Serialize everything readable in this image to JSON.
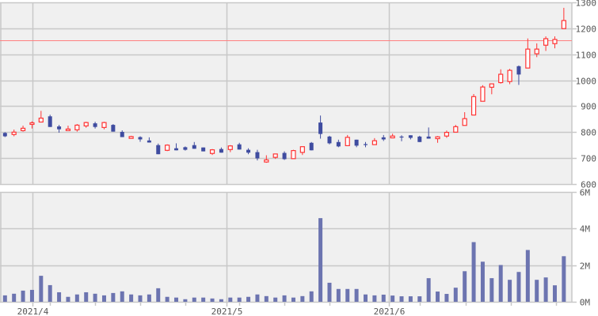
{
  "chart_data": [
    {
      "type": "candlestick",
      "price_axis": {
        "ylim": [
          600,
          1300
        ],
        "ticks": [
          "600",
          "700",
          "800",
          "900",
          "1000",
          "1100",
          "1200",
          "1300"
        ],
        "grid": true
      },
      "reference_line": {
        "value": 1155,
        "color": "#ff8080"
      },
      "x_labels": [
        {
          "label": "2021/4",
          "index": 3
        },
        {
          "label": "2021/5",
          "index": 24.5
        },
        {
          "label": "2021/6",
          "index": 42.5
        }
      ],
      "colors": {
        "up": "#ff3333",
        "down": "#3f4ca0",
        "background": "#f0f0f0",
        "grid": "#c8c8c8"
      },
      "ohlc": [
        [
          797,
          800,
          781,
          784
        ],
        [
          791,
          810,
          784,
          800
        ],
        [
          806,
          825,
          802,
          815
        ],
        [
          830,
          842,
          814,
          836
        ],
        [
          839,
          882,
          839,
          854
        ],
        [
          861,
          867,
          820,
          820
        ],
        [
          822,
          828,
          798,
          811
        ],
        [
          806,
          825,
          806,
          812
        ],
        [
          809,
          831,
          802,
          827
        ],
        [
          824,
          840,
          817,
          837
        ],
        [
          834,
          840,
          814,
          820
        ],
        [
          818,
          840,
          811,
          837
        ],
        [
          828,
          831,
          802,
          802
        ],
        [
          801,
          807,
          781,
          781
        ],
        [
          776,
          786,
          776,
          783
        ],
        [
          781,
          784,
          763,
          772
        ],
        [
          768,
          780,
          760,
          760
        ],
        [
          750,
          756,
          715,
          715
        ],
        [
          730,
          753,
          727,
          750
        ],
        [
          738,
          757,
          730,
          730
        ],
        [
          742,
          745,
          729,
          732
        ],
        [
          750,
          762,
          736,
          736
        ],
        [
          741,
          741,
          726,
          726
        ],
        [
          718,
          735,
          712,
          732
        ],
        [
          735,
          741,
          721,
          721
        ],
        [
          733,
          750,
          723,
          747
        ],
        [
          753,
          759,
          733,
          733
        ],
        [
          732,
          738,
          715,
          721
        ],
        [
          723,
          732,
          691,
          699
        ],
        [
          685,
          711,
          682,
          693
        ],
        [
          703,
          716,
          697,
          716
        ],
        [
          720,
          726,
          693,
          696
        ],
        [
          698,
          732,
          698,
          729
        ],
        [
          722,
          744,
          712,
          744
        ],
        [
          759,
          762,
          730,
          730
        ],
        [
          837,
          864,
          775,
          793
        ],
        [
          783,
          786,
          753,
          757
        ],
        [
          762,
          771,
          742,
          745
        ],
        [
          748,
          789,
          748,
          780
        ],
        [
          771,
          771,
          742,
          748
        ],
        [
          754,
          762,
          742,
          753
        ],
        [
          752,
          777,
          752,
          767
        ],
        [
          780,
          789,
          766,
          772
        ],
        [
          778,
          794,
          778,
          785
        ],
        [
          783,
          788,
          765,
          781
        ],
        [
          788,
          788,
          772,
          778
        ],
        [
          783,
          786,
          762,
          762
        ],
        [
          783,
          818,
          775,
          775
        ],
        [
          775,
          785,
          759,
          782
        ],
        [
          785,
          806,
          778,
          799
        ],
        [
          800,
          828,
          800,
          821
        ],
        [
          826,
          877,
          826,
          852
        ],
        [
          866,
          947,
          866,
          937
        ],
        [
          919,
          981,
          919,
          974
        ],
        [
          973,
          987,
          946,
          986
        ],
        [
          991,
          1042,
          987,
          1023
        ],
        [
          995,
          1044,
          985,
          1038
        ],
        [
          1054,
          1057,
          982,
          1022
        ],
        [
          1047,
          1161,
          1047,
          1120
        ],
        [
          1102,
          1142,
          1089,
          1120
        ],
        [
          1135,
          1169,
          1113,
          1160
        ],
        [
          1141,
          1169,
          1123,
          1157
        ],
        [
          1199,
          1279,
          1199,
          1230
        ]
      ]
    },
    {
      "type": "bar",
      "volume_axis": {
        "ylim": [
          0,
          6
        ],
        "ticks": [
          "0M",
          "2M",
          "4M",
          "6M"
        ],
        "grid": true
      },
      "bar_color": "#6c74b0",
      "values_millions": [
        0.35,
        0.44,
        0.61,
        0.65,
        1.42,
        0.91,
        0.52,
        0.27,
        0.4,
        0.52,
        0.44,
        0.35,
        0.48,
        0.57,
        0.4,
        0.35,
        0.4,
        0.74,
        0.27,
        0.23,
        0.14,
        0.23,
        0.23,
        0.18,
        0.14,
        0.23,
        0.23,
        0.27,
        0.4,
        0.31,
        0.23,
        0.35,
        0.23,
        0.31,
        0.57,
        4.57,
        1.04,
        0.7,
        0.7,
        0.7,
        0.4,
        0.35,
        0.39,
        0.34,
        0.3,
        0.3,
        0.3,
        1.29,
        0.56,
        0.43,
        0.77,
        1.67,
        3.26,
        2.19,
        1.29,
        2.01,
        1.2,
        1.63,
        2.83,
        1.2,
        1.33,
        0.9,
        2.49
      ]
    }
  ]
}
